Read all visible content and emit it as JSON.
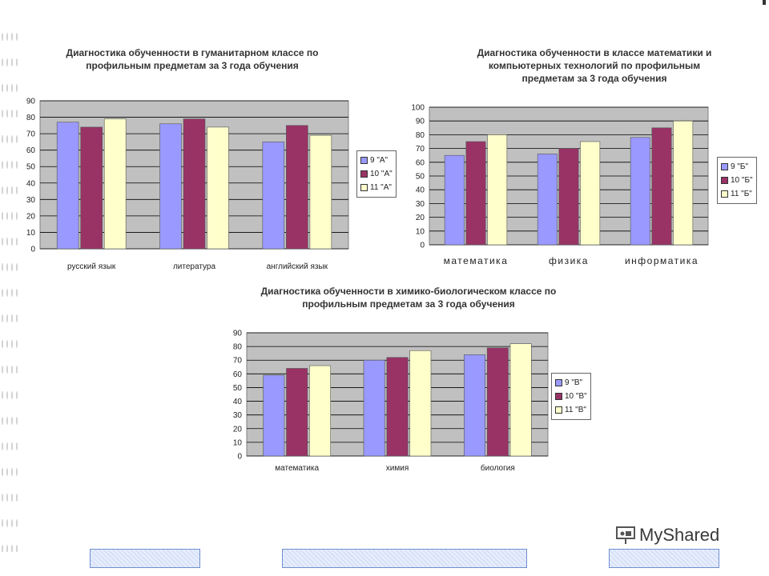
{
  "colors": {
    "plot_bg": "#c0c0c0",
    "s1": "#9999ff",
    "s2": "#993366",
    "s3": "#ffffcc",
    "strip_blue": "#6f8fd0"
  },
  "logo": {
    "text": "MyShared",
    "icon": "slideshare-presenter-icon"
  },
  "chart_data": [
    {
      "type": "bar",
      "title": "Диагностика обученности в гуманитарном классе по профильным предметам за 3 года обучения",
      "categories": [
        "русский язык",
        "литература",
        "английский язык"
      ],
      "series": [
        {
          "name": "9 \"А\"",
          "values": [
            77,
            76,
            65
          ]
        },
        {
          "name": "10 \"А\"",
          "values": [
            74,
            79,
            75
          ]
        },
        {
          "name": "11 \"А\"",
          "values": [
            79,
            74,
            69
          ]
        }
      ],
      "ylim": [
        0,
        90
      ],
      "yticks": [
        0,
        10,
        20,
        30,
        40,
        50,
        60,
        70,
        80,
        90
      ],
      "grid": true,
      "legend": "right"
    },
    {
      "type": "bar",
      "title": "Диагностика обученности в классе математики и компьютерных технологий по профильным предметам за 3 года обучения",
      "categories": [
        "математика",
        "физика",
        "информатика"
      ],
      "series": [
        {
          "name": "9 \"Б\"",
          "values": [
            65,
            66,
            78
          ]
        },
        {
          "name": "10 \"Б\"",
          "values": [
            75,
            70,
            85
          ]
        },
        {
          "name": "11 \"Б\"",
          "values": [
            80,
            75,
            90
          ]
        }
      ],
      "ylim": [
        0,
        100
      ],
      "yticks": [
        0,
        10,
        20,
        30,
        40,
        50,
        60,
        70,
        80,
        90,
        100
      ],
      "grid": true,
      "legend": "right"
    },
    {
      "type": "bar",
      "title": "Диагностика обученности в химико-биологическом классе по профильным предметам за 3 года обучения",
      "categories": [
        "математика",
        "химия",
        "биология"
      ],
      "series": [
        {
          "name": "9 \"В\"",
          "values": [
            59,
            70,
            74
          ]
        },
        {
          "name": "10 \"В\"",
          "values": [
            64,
            72,
            79
          ]
        },
        {
          "name": "11 \"В\"",
          "values": [
            66,
            77,
            82
          ]
        }
      ],
      "ylim": [
        0,
        90
      ],
      "yticks": [
        0,
        10,
        20,
        30,
        40,
        50,
        60,
        70,
        80,
        90
      ],
      "grid": true,
      "legend": "right"
    }
  ]
}
